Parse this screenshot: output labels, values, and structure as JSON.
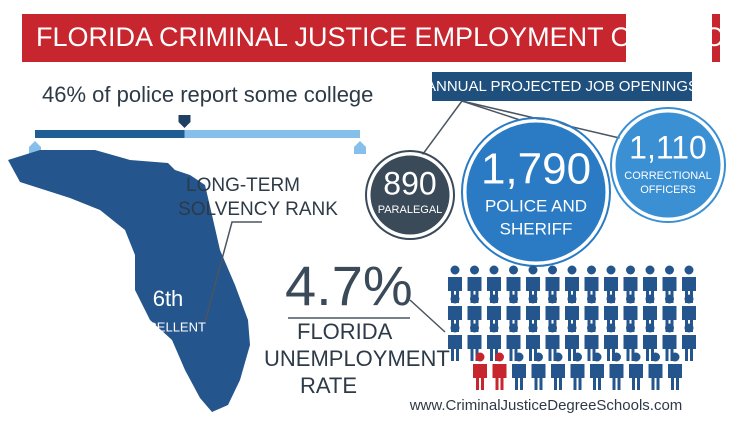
{
  "header": {
    "title": "FLORIDA CRIMINAL JUSTICE EMPLOYMENT OUTLOOK"
  },
  "college_bar": {
    "value": 46,
    "label": "46% of police report some college"
  },
  "job_openings": {
    "title": "ANNUAL PROJECTED JOB OPENINGS",
    "items": [
      {
        "value": "890",
        "label_lines": [
          "PARALEGAL"
        ]
      },
      {
        "value": "1,790",
        "label_lines": [
          "POLICE AND",
          "SHERIFF"
        ]
      },
      {
        "value": "1,110",
        "label_lines": [
          "CORRECTIONAL",
          "OFFICERS"
        ]
      }
    ]
  },
  "solvency": {
    "title_lines": [
      "LONG-TERM",
      "SOLVENCY RANK"
    ],
    "rank": "6th",
    "rating": "EXCELLENT"
  },
  "unemployment": {
    "rate": "4.7%",
    "label_lines": [
      "FLORIDA",
      "UNEMPLOYMENT",
      "RATE"
    ]
  },
  "footer": {
    "url": "www.CriminalJusticeDegreeSchools.com"
  }
}
